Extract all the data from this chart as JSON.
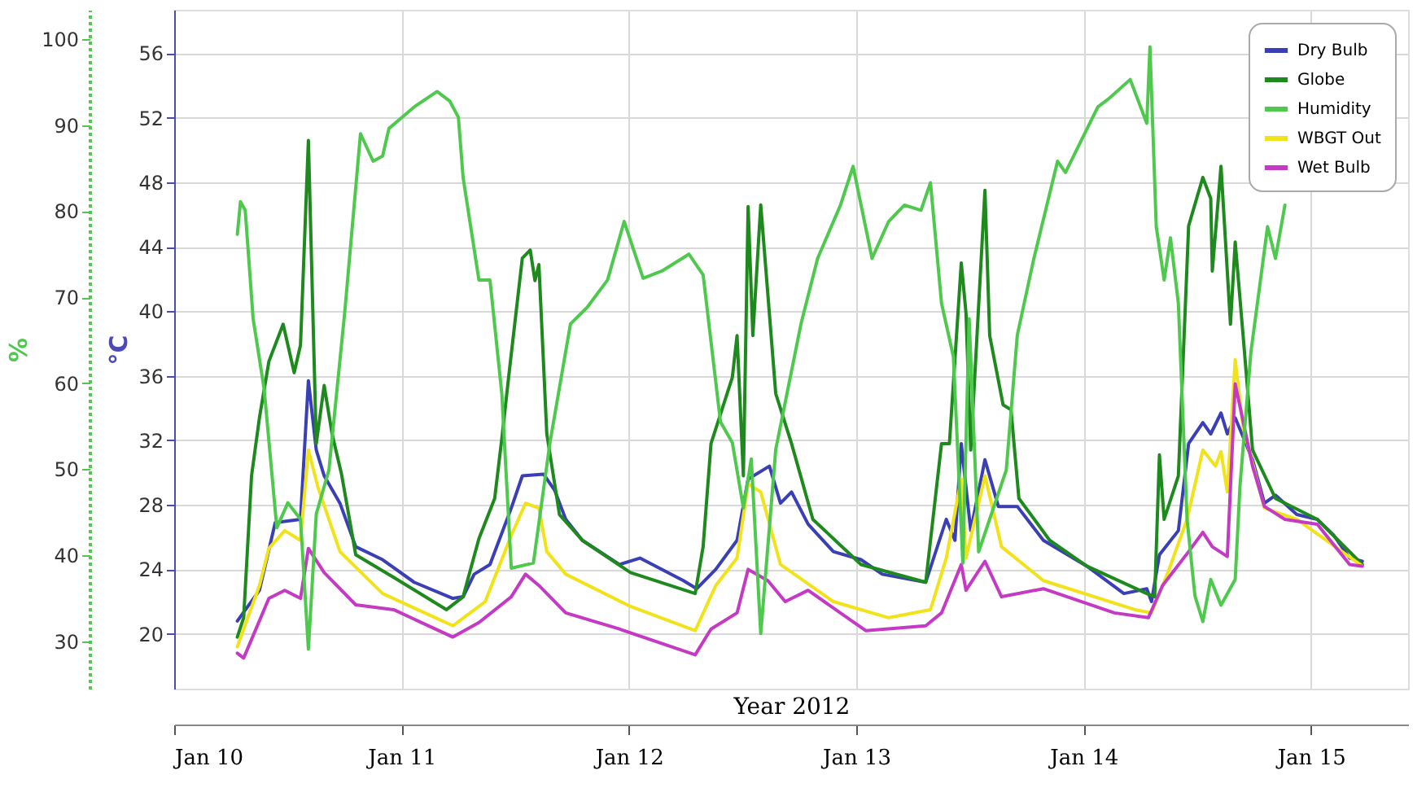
{
  "chart_data": {
    "type": "line",
    "xlabel": "Year 2012",
    "ylabel": "°C",
    "y2label": "%",
    "xlim": [
      "2012-01-10T00:00",
      "2012-01-15T10:15"
    ],
    "xticks": [
      {
        "value": "2012-01-10T00:00",
        "label": "Jan 10"
      },
      {
        "value": "2012-01-11T00:00",
        "label": "Jan 11"
      },
      {
        "value": "2012-01-12T00:00",
        "label": "Jan 12"
      },
      {
        "value": "2012-01-13T00:00",
        "label": "Jan 13"
      },
      {
        "value": "2012-01-14T00:00",
        "label": "Jan 14"
      },
      {
        "value": "2012-01-15T00:00",
        "label": "Jan 15"
      }
    ],
    "ylim": [
      16.6,
      58.7
    ],
    "yticks": [
      20,
      24,
      28,
      32,
      36,
      40,
      44,
      48,
      52,
      56
    ],
    "y2lim": [
      24.5,
      103.4
    ],
    "y2ticks": [
      30,
      40,
      50,
      60,
      70,
      80,
      90,
      100
    ],
    "grid": true,
    "legend": "top right",
    "line_style": "solid",
    "marker": "none",
    "series": [
      {
        "name": "Dry Bulb",
        "color": "#3a3fb5",
        "x": [
          "2012-01-10T06:40",
          "2012-01-10T09:00",
          "2012-01-10T10:40",
          "2012-01-10T13:20",
          "2012-01-10T14:10",
          "2012-01-10T15:00",
          "2012-01-10T15:50",
          "2012-01-10T17:30",
          "2012-01-10T19:10",
          "2012-01-10T22:00",
          "2012-01-11T01:20",
          "2012-01-11T05:25",
          "2012-01-11T06:30",
          "2012-01-11T07:40",
          "2012-01-11T09:20",
          "2012-01-11T11:35",
          "2012-01-11T12:45",
          "2012-01-11T15:00",
          "2012-01-11T16:10",
          "2012-01-11T17:20",
          "2012-01-11T19:05",
          "2012-01-11T23:00",
          "2012-01-12T01:10",
          "2012-01-12T05:45",
          "2012-01-12T07:10",
          "2012-01-12T09:10",
          "2012-01-12T11:25",
          "2012-01-12T12:35",
          "2012-01-12T14:50",
          "2012-01-12T16:00",
          "2012-01-12T17:10",
          "2012-01-12T18:55",
          "2012-01-12T21:35",
          "2012-01-13T00:30",
          "2012-01-13T02:45",
          "2012-01-13T07:20",
          "2012-01-13T09:30",
          "2012-01-13T10:25",
          "2012-01-13T11:05",
          "2012-01-13T12:05",
          "2012-01-13T13:35",
          "2012-01-13T15:00",
          "2012-01-13T17:00",
          "2012-01-13T19:45",
          "2012-01-14T00:20",
          "2012-01-14T04:15",
          "2012-01-14T06:40",
          "2012-01-14T07:10",
          "2012-01-14T08:00",
          "2012-01-14T10:00",
          "2012-01-14T11:05",
          "2012-01-14T12:35",
          "2012-01-14T13:25",
          "2012-01-14T14:30",
          "2012-01-14T15:10",
          "2012-01-14T16:00",
          "2012-01-14T17:50",
          "2012-01-14T19:05",
          "2012-01-14T20:15",
          "2012-01-14T22:30",
          "2012-01-15T00:40",
          "2012-01-15T02:25",
          "2012-01-15T04:05",
          "2012-01-15T05:25"
        ],
        "values": [
          20.8,
          22.7,
          26.9,
          27.1,
          35.7,
          31.4,
          29.8,
          28.1,
          25.4,
          24.6,
          23.2,
          22.2,
          22.3,
          23.7,
          24.3,
          27.8,
          29.8,
          29.9,
          28.9,
          27.1,
          25.8,
          24.3,
          24.7,
          23.3,
          22.8,
          24.0,
          25.8,
          29.6,
          30.4,
          28.1,
          28.8,
          26.8,
          25.1,
          24.6,
          23.7,
          23.2,
          27.1,
          25.8,
          31.8,
          26.4,
          30.8,
          27.9,
          27.9,
          25.8,
          24.2,
          22.5,
          22.8,
          22.0,
          24.9,
          26.4,
          31.8,
          33.1,
          32.4,
          33.7,
          32.4,
          33.4,
          30.8,
          28.1,
          28.6,
          27.4,
          27.1,
          26.1,
          24.7,
          24.5
        ]
      },
      {
        "name": "Globe",
        "color": "#1e8a1e",
        "x": [
          "2012-01-10T06:40",
          "2012-01-10T07:20",
          "2012-01-10T08:10",
          "2012-01-10T09:00",
          "2012-01-10T10:00",
          "2012-01-10T11:30",
          "2012-01-10T12:40",
          "2012-01-10T13:20",
          "2012-01-10T14:10",
          "2012-01-10T15:00",
          "2012-01-10T15:50",
          "2012-01-10T16:40",
          "2012-01-10T17:40",
          "2012-01-10T19:10",
          "2012-01-10T23:10",
          "2012-01-11T04:45",
          "2012-01-11T06:30",
          "2012-01-11T08:10",
          "2012-01-11T09:50",
          "2012-01-11T10:35",
          "2012-01-11T11:25",
          "2012-01-11T12:45",
          "2012-01-11T13:35",
          "2012-01-11T14:05",
          "2012-01-11T14:30",
          "2012-01-11T15:20",
          "2012-01-11T16:40",
          "2012-01-11T19:05",
          "2012-01-12T00:10",
          "2012-01-12T07:00",
          "2012-01-12T07:50",
          "2012-01-12T08:40",
          "2012-01-12T10:55",
          "2012-01-12T11:25",
          "2012-01-12T12:05",
          "2012-01-12T12:35",
          "2012-01-12T13:05",
          "2012-01-12T13:55",
          "2012-01-12T15:30",
          "2012-01-12T17:10",
          "2012-01-12T19:25",
          "2012-01-13T00:30",
          "2012-01-13T07:20",
          "2012-01-13T09:00",
          "2012-01-13T09:50",
          "2012-01-13T11:05",
          "2012-01-13T11:35",
          "2012-01-13T12:05",
          "2012-01-13T13:35",
          "2012-01-13T14:05",
          "2012-01-13T15:30",
          "2012-01-13T16:20",
          "2012-01-13T17:10",
          "2012-01-13T20:25",
          "2012-01-14T00:20",
          "2012-01-14T06:40",
          "2012-01-14T07:30",
          "2012-01-14T08:00",
          "2012-01-14T08:30",
          "2012-01-14T10:00",
          "2012-01-14T11:05",
          "2012-01-14T12:35",
          "2012-01-14T13:25",
          "2012-01-14T13:35",
          "2012-01-14T14:30",
          "2012-01-14T15:30",
          "2012-01-14T16:00",
          "2012-01-14T16:50",
          "2012-01-14T17:50",
          "2012-01-14T20:15",
          "2012-01-15T00:40",
          "2012-01-15T05:25"
        ],
        "values": [
          19.8,
          21.0,
          29.8,
          33.4,
          36.9,
          39.2,
          36.2,
          37.9,
          50.6,
          31.8,
          35.4,
          32.4,
          29.9,
          24.9,
          23.5,
          21.5,
          22.3,
          25.9,
          28.4,
          32.1,
          36.5,
          43.3,
          43.8,
          41.9,
          42.9,
          32.4,
          27.4,
          25.8,
          23.8,
          22.5,
          25.4,
          31.8,
          35.9,
          38.5,
          29.8,
          46.5,
          38.5,
          46.6,
          34.9,
          31.8,
          27.1,
          24.3,
          23.2,
          31.8,
          31.8,
          43.0,
          39.9,
          31.4,
          47.5,
          38.5,
          34.2,
          33.9,
          28.4,
          25.8,
          24.2,
          22.5,
          22.3,
          31.1,
          27.1,
          29.8,
          45.3,
          48.3,
          47.0,
          42.5,
          49.0,
          39.2,
          44.3,
          38.5,
          31.4,
          28.4,
          27.1,
          24.3
        ]
      },
      {
        "name": "Humidity",
        "color": "#4ec94e",
        "axis": "y2",
        "x": [
          "2012-01-10T06:40",
          "2012-01-10T07:00",
          "2012-01-10T07:30",
          "2012-01-10T08:20",
          "2012-01-10T09:30",
          "2012-01-10T10:50",
          "2012-01-10T12:00",
          "2012-01-10T13:20",
          "2012-01-10T14:10",
          "2012-01-10T15:00",
          "2012-01-10T16:20",
          "2012-01-10T18:00",
          "2012-01-10T19:40",
          "2012-01-10T21:00",
          "2012-01-10T22:00",
          "2012-01-10T22:40",
          "2012-01-11T01:20",
          "2012-01-11T03:45",
          "2012-01-11T05:05",
          "2012-01-11T06:00",
          "2012-01-11T06:30",
          "2012-01-11T08:10",
          "2012-01-11T09:20",
          "2012-01-11T10:35",
          "2012-01-11T11:35",
          "2012-01-11T13:55",
          "2012-01-11T15:40",
          "2012-01-11T17:50",
          "2012-01-11T19:35",
          "2012-01-11T21:45",
          "2012-01-11T23:30",
          "2012-01-12T01:30",
          "2012-01-12T03:35",
          "2012-01-12T06:20",
          "2012-01-12T07:50",
          "2012-01-12T09:40",
          "2012-01-12T10:55",
          "2012-01-12T12:05",
          "2012-01-12T12:55",
          "2012-01-12T13:55",
          "2012-01-12T15:30",
          "2012-01-12T18:10",
          "2012-01-12T19:55",
          "2012-01-12T22:20",
          "2012-01-12T23:40",
          "2012-01-13T01:40",
          "2012-01-13T03:25",
          "2012-01-13T05:05",
          "2012-01-13T06:50",
          "2012-01-13T07:50",
          "2012-01-13T09:00",
          "2012-01-13T10:15",
          "2012-01-13T11:15",
          "2012-01-13T11:55",
          "2012-01-13T12:55",
          "2012-01-13T15:50",
          "2012-01-13T17:00",
          "2012-01-13T18:45",
          "2012-01-13T21:15",
          "2012-01-13T22:05",
          "2012-01-14T01:30",
          "2012-01-14T02:35",
          "2012-01-14T04:55",
          "2012-01-14T06:40",
          "2012-01-14T07:00",
          "2012-01-14T07:40",
          "2012-01-14T08:30",
          "2012-01-14T09:10",
          "2012-01-14T10:00",
          "2012-01-14T10:55",
          "2012-01-14T11:45",
          "2012-01-14T12:35",
          "2012-01-14T13:25",
          "2012-01-14T14:30",
          "2012-01-14T16:00",
          "2012-01-14T16:30",
          "2012-01-14T17:40",
          "2012-01-14T19:25",
          "2012-01-14T20:15",
          "2012-01-14T21:15"
        ],
        "values": [
          77.3,
          81.1,
          80.1,
          67.5,
          59.3,
          43.2,
          46.1,
          44.2,
          29.1,
          44.8,
          49.9,
          68.2,
          89.0,
          85.8,
          86.4,
          89.6,
          92.1,
          93.9,
          92.8,
          90.9,
          83.9,
          72.0,
          72.0,
          58.8,
          38.5,
          39.1,
          53.1,
          66.9,
          68.8,
          72.0,
          78.8,
          72.2,
          73.1,
          75.0,
          72.6,
          55.5,
          53.1,
          45.5,
          51.2,
          30.9,
          52.3,
          66.9,
          74.5,
          80.7,
          85.2,
          74.5,
          78.8,
          80.7,
          80.1,
          83.3,
          69.3,
          63.1,
          39.1,
          67.5,
          40.4,
          49.9,
          65.6,
          74.5,
          85.8,
          84.5,
          92.1,
          93.0,
          95.3,
          90.2,
          99.1,
          78.2,
          72.0,
          76.9,
          69.3,
          44.2,
          35.3,
          32.3,
          37.2,
          34.2,
          37.2,
          48.0,
          63.7,
          78.2,
          74.5,
          80.7
        ]
      },
      {
        "name": "WBGT Out",
        "color": "#f2e21a",
        "x": [
          "2012-01-10T06:40",
          "2012-01-10T09:00",
          "2012-01-10T10:00",
          "2012-01-10T11:40",
          "2012-01-10T13:20",
          "2012-01-10T14:10",
          "2012-01-10T15:10",
          "2012-01-10T17:30",
          "2012-01-10T22:00",
          "2012-01-11T05:25",
          "2012-01-11T08:10",
          "2012-01-11T08:50",
          "2012-01-11T11:35",
          "2012-01-11T13:05",
          "2012-01-11T14:30",
          "2012-01-11T15:20",
          "2012-01-11T17:20",
          "2012-01-12T00:10",
          "2012-01-12T07:00",
          "2012-01-12T09:10",
          "2012-01-12T11:25",
          "2012-01-12T12:35",
          "2012-01-12T13:55",
          "2012-01-12T16:00",
          "2012-01-12T21:35",
          "2012-01-13T03:25",
          "2012-01-13T07:50",
          "2012-01-13T09:30",
          "2012-01-13T11:05",
          "2012-01-13T11:35",
          "2012-01-13T13:35",
          "2012-01-13T15:20",
          "2012-01-13T19:45",
          "2012-01-14T05:25",
          "2012-01-14T07:10",
          "2012-01-14T08:50",
          "2012-01-14T10:55",
          "2012-01-14T12:35",
          "2012-01-14T13:55",
          "2012-01-14T14:30",
          "2012-01-14T15:10",
          "2012-01-14T16:00",
          "2012-01-14T16:50",
          "2012-01-14T19:05",
          "2012-01-14T22:30",
          "2012-01-15T05:25"
        ],
        "values": [
          19.2,
          23.0,
          25.3,
          26.4,
          25.8,
          31.4,
          29.1,
          25.1,
          22.5,
          20.5,
          21.7,
          22.0,
          26.1,
          28.1,
          27.8,
          25.1,
          23.7,
          21.7,
          20.2,
          23.0,
          24.7,
          29.3,
          28.8,
          24.3,
          22.0,
          21.0,
          21.5,
          24.7,
          29.6,
          24.7,
          29.8,
          25.4,
          23.3,
          21.5,
          21.3,
          23.7,
          27.1,
          31.4,
          30.4,
          31.3,
          28.8,
          37.0,
          32.8,
          27.8,
          27.1,
          24.2
        ]
      },
      {
        "name": "Wet Bulb",
        "color": "#c43ac4",
        "x": [
          "2012-01-10T06:40",
          "2012-01-10T07:20",
          "2012-01-10T10:00",
          "2012-01-10T11:40",
          "2012-01-10T13:20",
          "2012-01-10T14:10",
          "2012-01-10T15:50",
          "2012-01-10T19:10",
          "2012-01-10T23:10",
          "2012-01-11T05:25",
          "2012-01-11T08:10",
          "2012-01-11T11:35",
          "2012-01-11T13:05",
          "2012-01-11T14:30",
          "2012-01-11T17:20",
          "2012-01-11T23:00",
          "2012-01-12T07:00",
          "2012-01-12T08:40",
          "2012-01-12T11:25",
          "2012-01-12T12:35",
          "2012-01-12T14:40",
          "2012-01-12T16:30",
          "2012-01-12T18:55",
          "2012-01-13T01:00",
          "2012-01-13T07:20",
          "2012-01-13T09:00",
          "2012-01-13T11:05",
          "2012-01-13T11:35",
          "2012-01-13T13:35",
          "2012-01-13T15:20",
          "2012-01-13T19:45",
          "2012-01-14T03:15",
          "2012-01-14T06:50",
          "2012-01-14T08:20",
          "2012-01-14T11:05",
          "2012-01-14T12:35",
          "2012-01-14T13:35",
          "2012-01-14T15:10",
          "2012-01-14T16:00",
          "2012-01-14T17:50",
          "2012-01-14T19:05",
          "2012-01-14T21:15",
          "2012-01-15T00:40",
          "2012-01-15T04:05",
          "2012-01-15T05:25"
        ],
        "values": [
          18.8,
          18.5,
          22.2,
          22.7,
          22.2,
          25.3,
          23.8,
          21.8,
          21.5,
          19.8,
          20.7,
          22.3,
          23.7,
          23.0,
          21.3,
          20.3,
          18.7,
          20.3,
          21.3,
          24.0,
          23.3,
          22.0,
          22.7,
          20.2,
          20.5,
          21.3,
          24.3,
          22.7,
          24.5,
          22.3,
          22.8,
          21.3,
          21.0,
          23.0,
          25.1,
          26.3,
          25.4,
          24.8,
          35.5,
          30.4,
          27.9,
          27.1,
          26.8,
          24.3,
          24.2
        ]
      }
    ]
  }
}
